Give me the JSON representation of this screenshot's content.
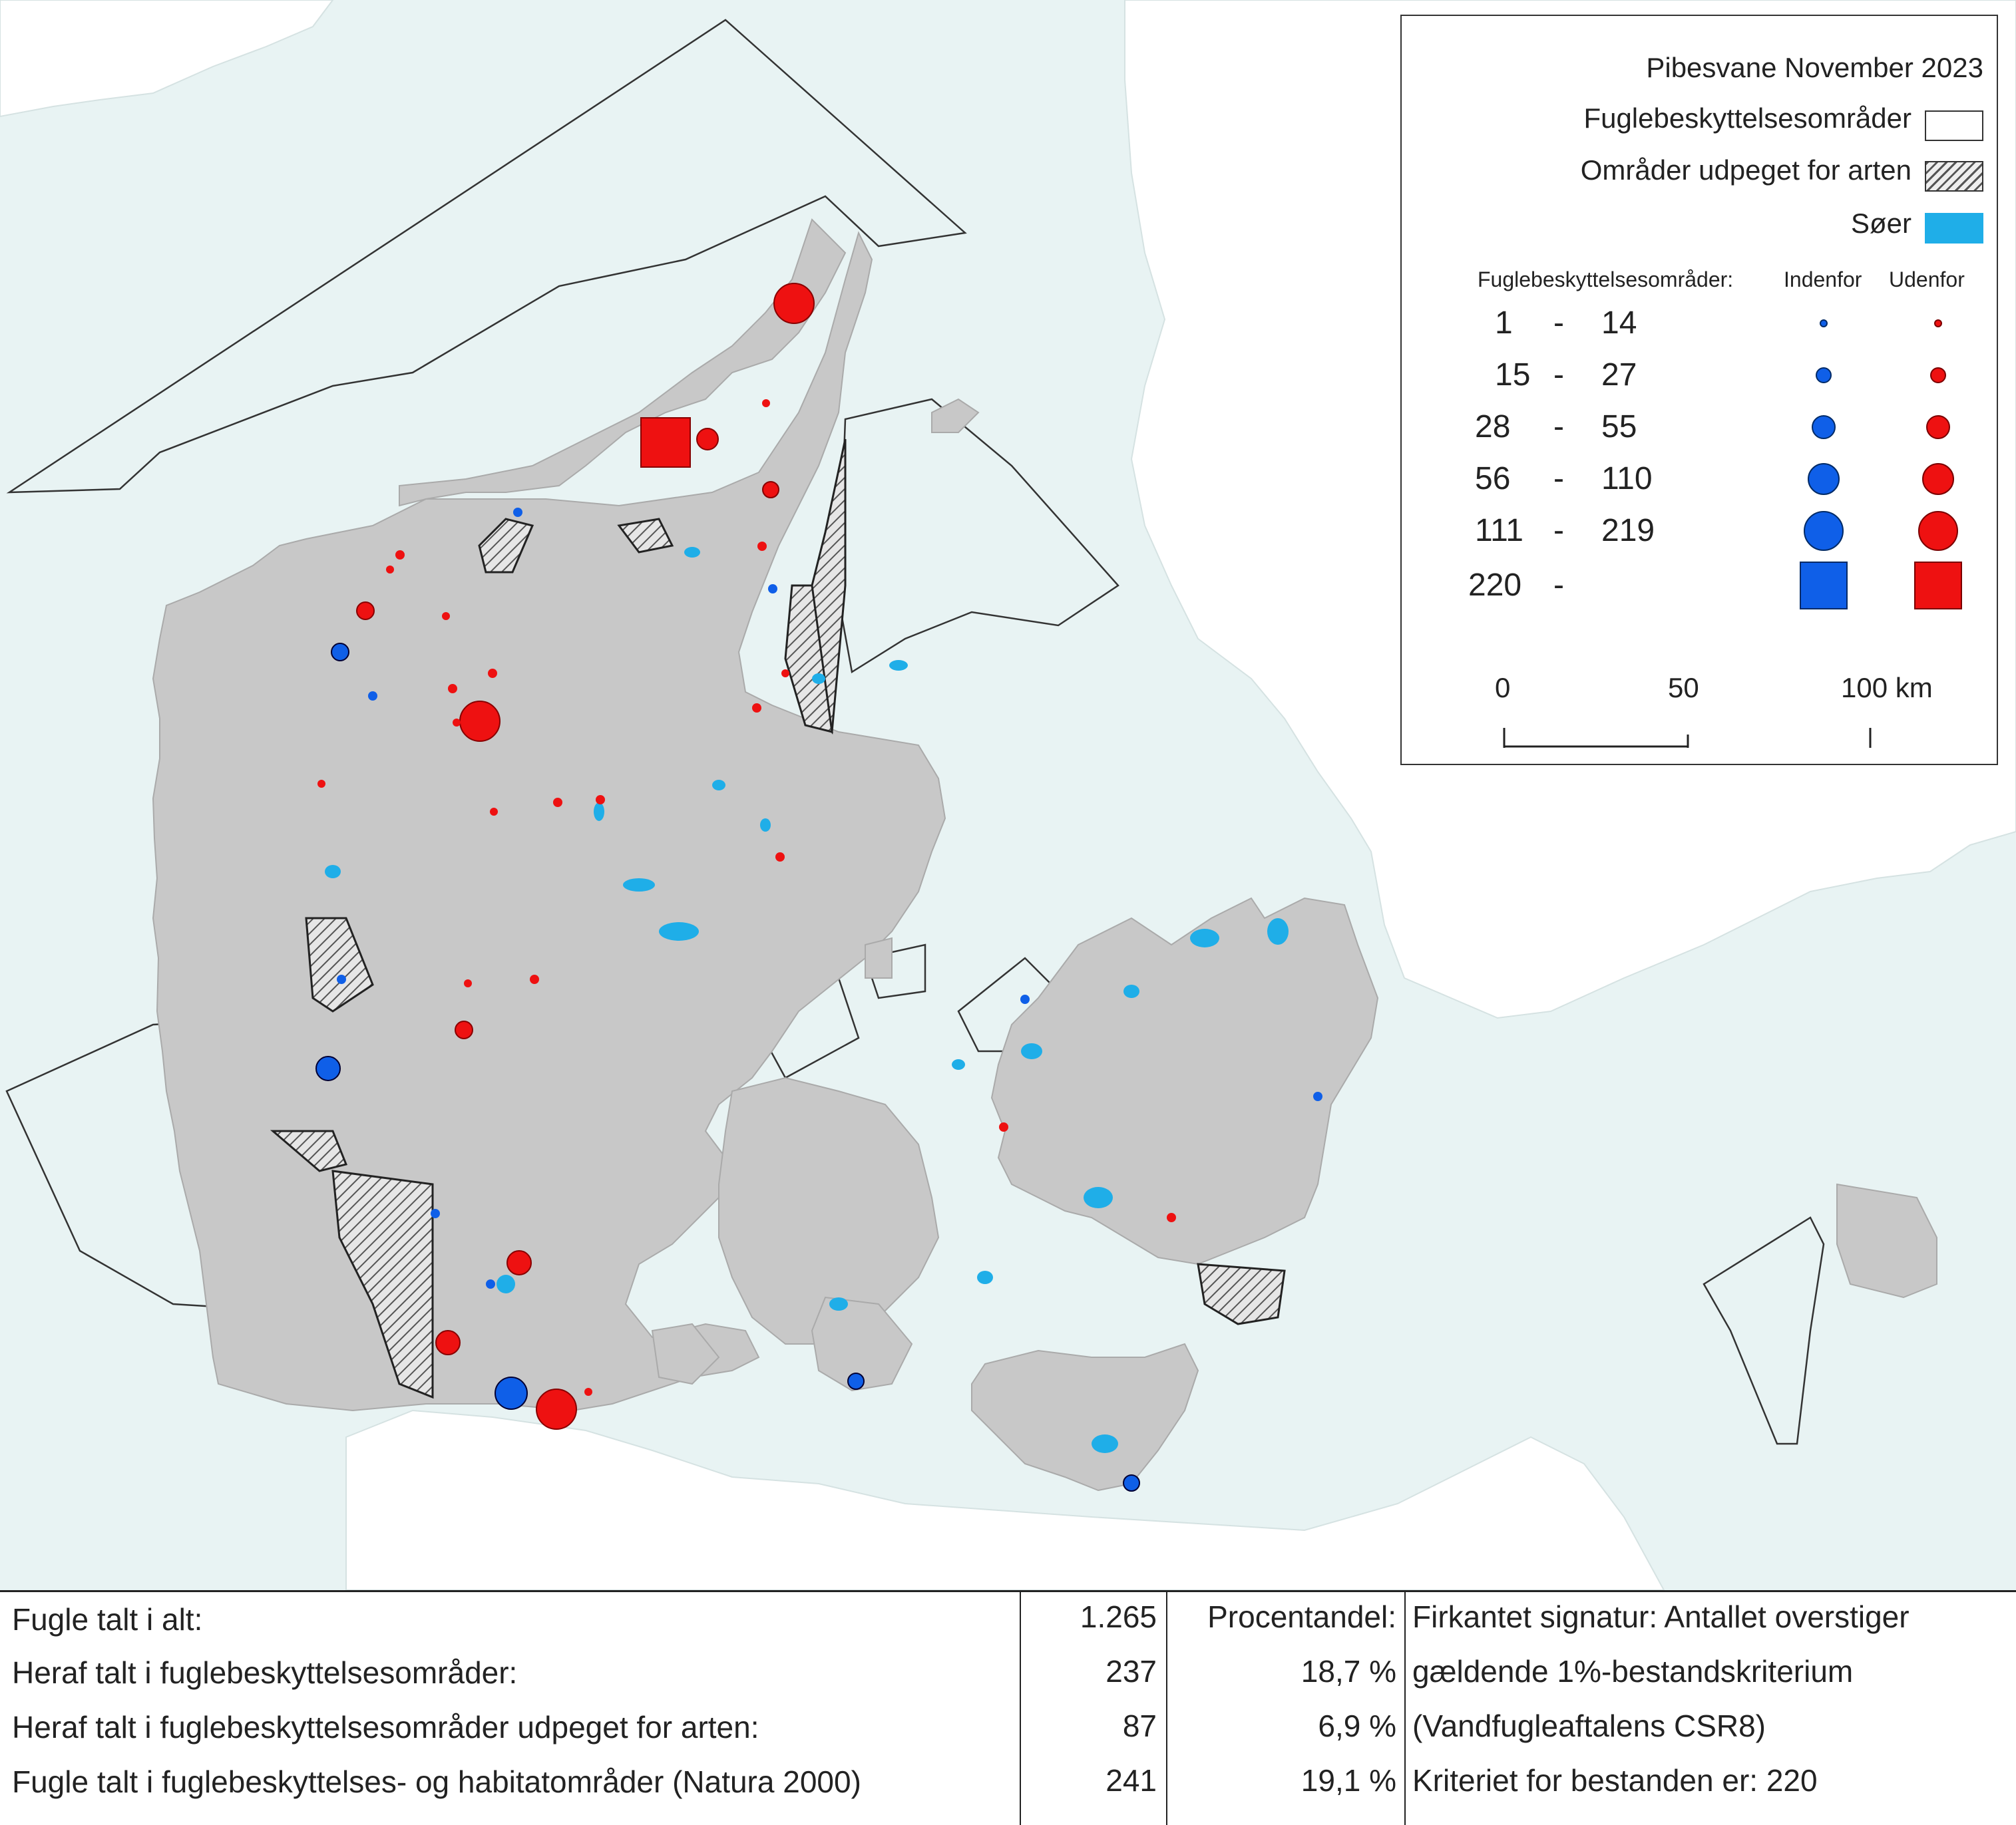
{
  "map": {
    "colors": {
      "sea": "#e8f3f3",
      "land": "#c8c8c8",
      "neighbour_land": "#ffffff",
      "lake": "#1faee8",
      "inside_symbol": "#0f5fe8",
      "outside_symbol": "#ee1111"
    },
    "features": [
      "denmark-land",
      "sweden-coast",
      "germany-coast",
      "bird-protection-areas",
      "species-designated-areas",
      "lakes",
      "count-symbols"
    ]
  },
  "legend": {
    "title": "Pibesvane November 2023",
    "items": [
      {
        "label": "Fuglebeskyttelsesområder",
        "swatch": "white"
      },
      {
        "label": "Områder udpeget for arten",
        "swatch": "hatch"
      },
      {
        "label": "Søer",
        "swatch": "lake"
      }
    ],
    "header": {
      "label": "Fuglebeskyttelsesområder:",
      "inside": "Indenfor",
      "outside": "Udenfor"
    },
    "classes": [
      {
        "lo": "1",
        "dash": "-",
        "hi": "14"
      },
      {
        "lo": "15",
        "dash": "-",
        "hi": "27"
      },
      {
        "lo": "28",
        "dash": "-",
        "hi": "55"
      },
      {
        "lo": "56",
        "dash": "-",
        "hi": "110"
      },
      {
        "lo": "111",
        "dash": "-",
        "hi": "219"
      },
      {
        "lo": "220",
        "dash": "-",
        "hi": ""
      }
    ],
    "scalebar": {
      "labels": [
        "0",
        "50",
        "100 km"
      ]
    }
  },
  "stats": {
    "rows": [
      {
        "label": "Fugle talt i alt:",
        "count": "1.265",
        "pct": "Procentandel:",
        "note": "Firkantet signatur: Antallet overstiger"
      },
      {
        "label": "Heraf talt i fuglebeskyttelsesområder:",
        "count": "237",
        "pct": "18,7 %",
        "note": "gældende 1%-bestandskriterium"
      },
      {
        "label": "Heraf talt i fuglebeskyttelsesområder udpeget for arten:",
        "count": "87",
        "pct": "6,9 %",
        "note": "(Vandfugleaftalens CSR8)"
      },
      {
        "label": "Fugle talt i fuglebeskyttelses- og habitatområder (Natura 2000)",
        "count": "241",
        "pct": "19,1 %",
        "note": "Kriteriet for bestanden er: 220"
      }
    ]
  }
}
